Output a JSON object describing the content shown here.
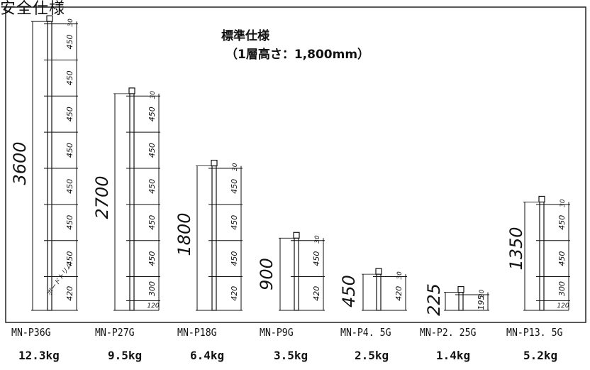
{
  "header": {
    "partial_text": "安全仕様"
  },
  "title": {
    "line1": "標準仕様",
    "line2": "（1層高さ：1,800mm）"
  },
  "annotation": "ボードトリム",
  "ladders": [
    {
      "model": "MN-P36G",
      "weight": "12.3kg",
      "total": "3600",
      "segments": [
        "30",
        "450",
        "450",
        "450",
        "450",
        "450",
        "450",
        "450",
        "420"
      ],
      "bottom_small": ""
    },
    {
      "model": "MN-P27G",
      "weight": "9.5kg",
      "total": "2700",
      "segments": [
        "30",
        "450",
        "450",
        "450",
        "450",
        "450",
        "300"
      ],
      "bottom_small": "120"
    },
    {
      "model": "MN-P18G",
      "weight": "6.4kg",
      "total": "1800",
      "segments": [
        "30",
        "450",
        "450",
        "450",
        "420"
      ],
      "bottom_small": ""
    },
    {
      "model": "MN-P9G",
      "weight": "3.5kg",
      "total": "900",
      "segments": [
        "30",
        "450",
        "420"
      ],
      "bottom_small": ""
    },
    {
      "model": "MN-P4. 5G",
      "weight": "2.5kg",
      "total": "450",
      "segments": [
        "30",
        "420"
      ],
      "bottom_small": ""
    },
    {
      "model": "MN-P2. 25G",
      "weight": "1.4kg",
      "total": "225",
      "segments": [
        "30",
        "195"
      ],
      "bottom_small": ""
    },
    {
      "model": "MN-P13. 5G",
      "weight": "5.2kg",
      "total": "1350",
      "segments": [
        "30",
        "450",
        "450",
        "300"
      ],
      "bottom_small": "120"
    }
  ]
}
